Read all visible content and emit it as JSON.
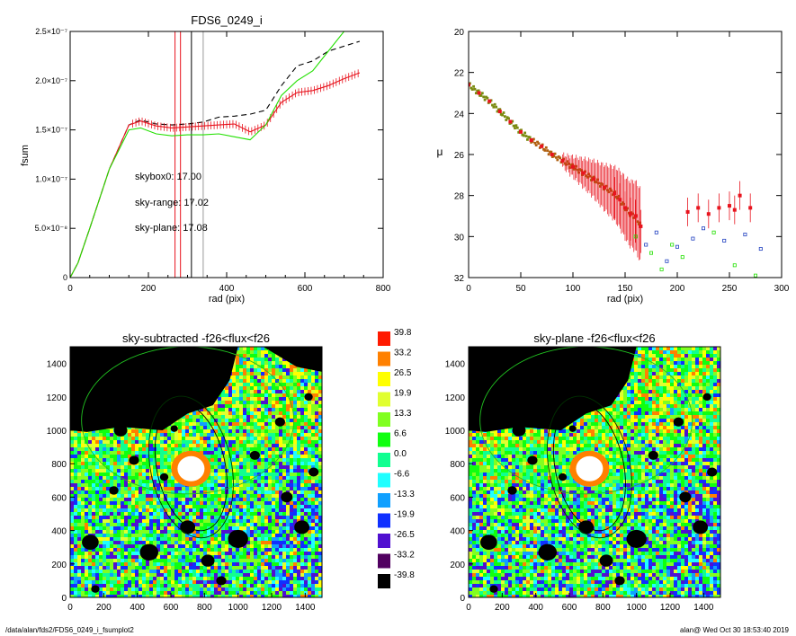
{
  "footer": {
    "path": "/data/alan/fds2/FDS6_0249_i_fsumplot2",
    "stamp": "alan@  Wed Oct 30 18:53:40 2019"
  },
  "colors": {
    "sky_range": "#e8141e",
    "sky_plane": "#22e000",
    "skybox0": "#000000"
  },
  "chart_data": [
    {
      "type": "line",
      "title": "FDS6_0249_i",
      "xlabel": "rad (pix)",
      "ylabel": "fsum",
      "xlim": [
        0,
        800
      ],
      "ylim": [
        0,
        2.5e-07
      ],
      "xticks": [
        "0",
        "200",
        "400",
        "600",
        "800"
      ],
      "yticks": [
        {
          "v": 0,
          "label": "0"
        },
        {
          "v": 5e-08,
          "label": "5.0×10⁻⁸"
        },
        {
          "v": 1e-07,
          "label": "1.0×10⁻⁷"
        },
        {
          "v": 1.5e-07,
          "label": "1.5×10⁻⁷"
        },
        {
          "v": 2e-07,
          "label": "2.0×10⁻⁷"
        },
        {
          "v": 2.5e-07,
          "label": "2.5×10⁻⁷"
        }
      ],
      "annotations": [
        {
          "text": "skybox0: 17.00",
          "color": "#000000"
        },
        {
          "text": "sky-range: 17.02",
          "color": "#e8141e"
        },
        {
          "text": "sky-plane: 17.08",
          "color": "#22e000"
        }
      ],
      "vlines": [
        {
          "x": 268,
          "color": "#e8141e"
        },
        {
          "x": 282,
          "color": "#e8141e"
        },
        {
          "x": 310,
          "color": "#000000"
        },
        {
          "x": 340,
          "color": "#999999"
        }
      ],
      "series": [
        {
          "color": "#000000",
          "dash": true,
          "x": [
            0,
            20,
            50,
            100,
            150,
            180,
            220,
            260,
            300,
            340,
            380,
            420,
            460,
            500,
            540,
            580,
            620,
            660,
            700,
            740
          ],
          "y": [
            0,
            1.5e-08,
            5e-08,
            1.1e-07,
            1.55e-07,
            1.6e-07,
            1.56e-07,
            1.55e-07,
            1.56e-07,
            1.58e-07,
            1.63e-07,
            1.64e-07,
            1.66e-07,
            1.7e-07,
            1.95e-07,
            2.15e-07,
            2.2e-07,
            2.3e-07,
            2.35e-07,
            2.4e-07
          ]
        },
        {
          "color": "#e8141e",
          "errorbars": true,
          "x": [
            0,
            20,
            50,
            100,
            150,
            180,
            220,
            260,
            300,
            340,
            380,
            420,
            460,
            500,
            540,
            580,
            620,
            660,
            700,
            740
          ],
          "y": [
            0,
            1.5e-08,
            5e-08,
            1.1e-07,
            1.55e-07,
            1.59e-07,
            1.54e-07,
            1.52e-07,
            1.53e-07,
            1.54e-07,
            1.55e-07,
            1.56e-07,
            1.48e-07,
            1.55e-07,
            1.78e-07,
            1.88e-07,
            1.9e-07,
            1.95e-07,
            2.02e-07,
            2.08e-07
          ]
        },
        {
          "color": "#22e000",
          "x": [
            0,
            20,
            50,
            100,
            150,
            180,
            220,
            260,
            300,
            340,
            380,
            420,
            460,
            500,
            540,
            580,
            620,
            660,
            700
          ],
          "y": [
            0,
            1.5e-08,
            5e-08,
            1.1e-07,
            1.5e-07,
            1.52e-07,
            1.46e-07,
            1.44e-07,
            1.45e-07,
            1.45e-07,
            1.46e-07,
            1.43e-07,
            1.4e-07,
            1.55e-07,
            1.85e-07,
            2e-07,
            2.1e-07,
            2.3e-07,
            2.5e-07
          ]
        }
      ]
    },
    {
      "type": "scatter",
      "title": "",
      "xlabel": "rad (pix)",
      "ylabel": "μ",
      "xlim": [
        0,
        300
      ],
      "ylim": [
        32,
        20
      ],
      "xticks": [
        "0",
        "50",
        "100",
        "150",
        "200",
        "250",
        "300"
      ],
      "yticks": [
        "20",
        "22",
        "24",
        "26",
        "28",
        "30",
        "32"
      ],
      "series": [
        {
          "color": "#e8141e",
          "errorbars": true,
          "x": [
            0,
            10,
            20,
            30,
            40,
            50,
            60,
            70,
            80,
            90,
            100,
            110,
            120,
            130,
            140,
            145,
            150,
            155,
            160,
            165,
            210,
            220,
            230,
            240,
            250,
            255,
            260,
            270
          ],
          "y": [
            22.6,
            23.0,
            23.4,
            23.9,
            24.4,
            24.9,
            25.3,
            25.6,
            26.0,
            26.3,
            26.6,
            26.9,
            27.2,
            27.6,
            27.9,
            28.2,
            28.6,
            28.9,
            29.0,
            29.5,
            28.8,
            28.6,
            28.9,
            28.6,
            28.5,
            28.7,
            28.0,
            28.6
          ]
        },
        {
          "color": "#2040c0",
          "x": [
            170,
            180,
            190,
            200,
            215,
            225,
            245,
            265,
            280
          ],
          "y": [
            30.4,
            29.8,
            31.2,
            30.5,
            30.1,
            29.6,
            30.2,
            29.9,
            30.6
          ]
        },
        {
          "color": "#22e000",
          "x": [
            160,
            175,
            185,
            195,
            205,
            235,
            255,
            275
          ],
          "y": [
            30.0,
            30.8,
            31.6,
            30.4,
            31.0,
            29.8,
            31.4,
            31.9
          ]
        }
      ]
    },
    {
      "type": "heatmap",
      "title": "sky-subtracted -f26<flux<f26",
      "xlim": [
        0,
        1500
      ],
      "ylim": [
        0,
        1500
      ],
      "xticks": [
        "0",
        "200",
        "400",
        "600",
        "800",
        "1000",
        "1200",
        "1400"
      ],
      "yticks": [
        "0",
        "200",
        "400",
        "600",
        "800",
        "1000",
        "1200",
        "1400"
      ]
    },
    {
      "type": "heatmap",
      "title": "sky-plane -f26<flux<f26",
      "xlim": [
        0,
        1500
      ],
      "ylim": [
        0,
        1500
      ],
      "xticks": [
        "0",
        "200",
        "400",
        "600",
        "800",
        "1000",
        "1200",
        "1400"
      ],
      "yticks": [
        "0",
        "200",
        "400",
        "600",
        "800",
        "1000",
        "1200",
        "1400"
      ]
    }
  ],
  "colorbar": [
    {
      "label": "39.8",
      "color": "#ff1a00"
    },
    {
      "label": "33.2",
      "color": "#ff8000"
    },
    {
      "label": "26.5",
      "color": "#ffff00"
    },
    {
      "label": "19.9",
      "color": "#e0ff30"
    },
    {
      "label": "13.3",
      "color": "#80ff20"
    },
    {
      "label": "6.6",
      "color": "#10ff10"
    },
    {
      "label": "0.0",
      "color": "#10ff90"
    },
    {
      "label": "-6.6",
      "color": "#20ffff"
    },
    {
      "label": "-13.3",
      "color": "#10a0ff"
    },
    {
      "label": "-19.9",
      "color": "#1030ff"
    },
    {
      "label": "-26.5",
      "color": "#5010d0"
    },
    {
      "label": "-33.2",
      "color": "#500060"
    },
    {
      "label": "-39.8",
      "color": "#000000"
    }
  ]
}
